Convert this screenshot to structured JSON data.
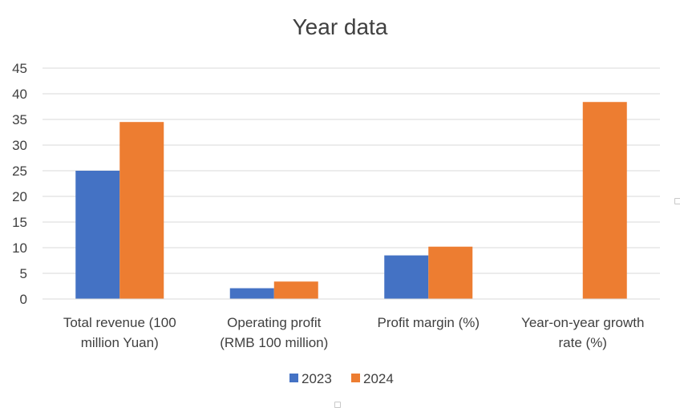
{
  "chart_data": {
    "type": "bar",
    "title": "Year data",
    "xlabel": "",
    "ylabel": "",
    "categories": [
      [
        "Total revenue (100",
        "million Yuan)"
      ],
      [
        "Operating profit",
        "(RMB 100 million)"
      ],
      [
        "Profit margin (%)"
      ],
      [
        "Year-on-year growth",
        "rate (%)"
      ]
    ],
    "series": [
      {
        "name": "2023",
        "color": "#4472C4",
        "values": [
          25.0,
          2.1,
          8.5,
          null
        ]
      },
      {
        "name": "2024",
        "color": "#ED7D31",
        "values": [
          34.5,
          3.4,
          10.2,
          38.4
        ]
      }
    ],
    "ylim": [
      0,
      45
    ],
    "yticks": [
      0,
      5,
      10,
      15,
      20,
      25,
      30,
      35,
      40,
      45
    ],
    "grid": true,
    "legend_position": "bottom"
  }
}
